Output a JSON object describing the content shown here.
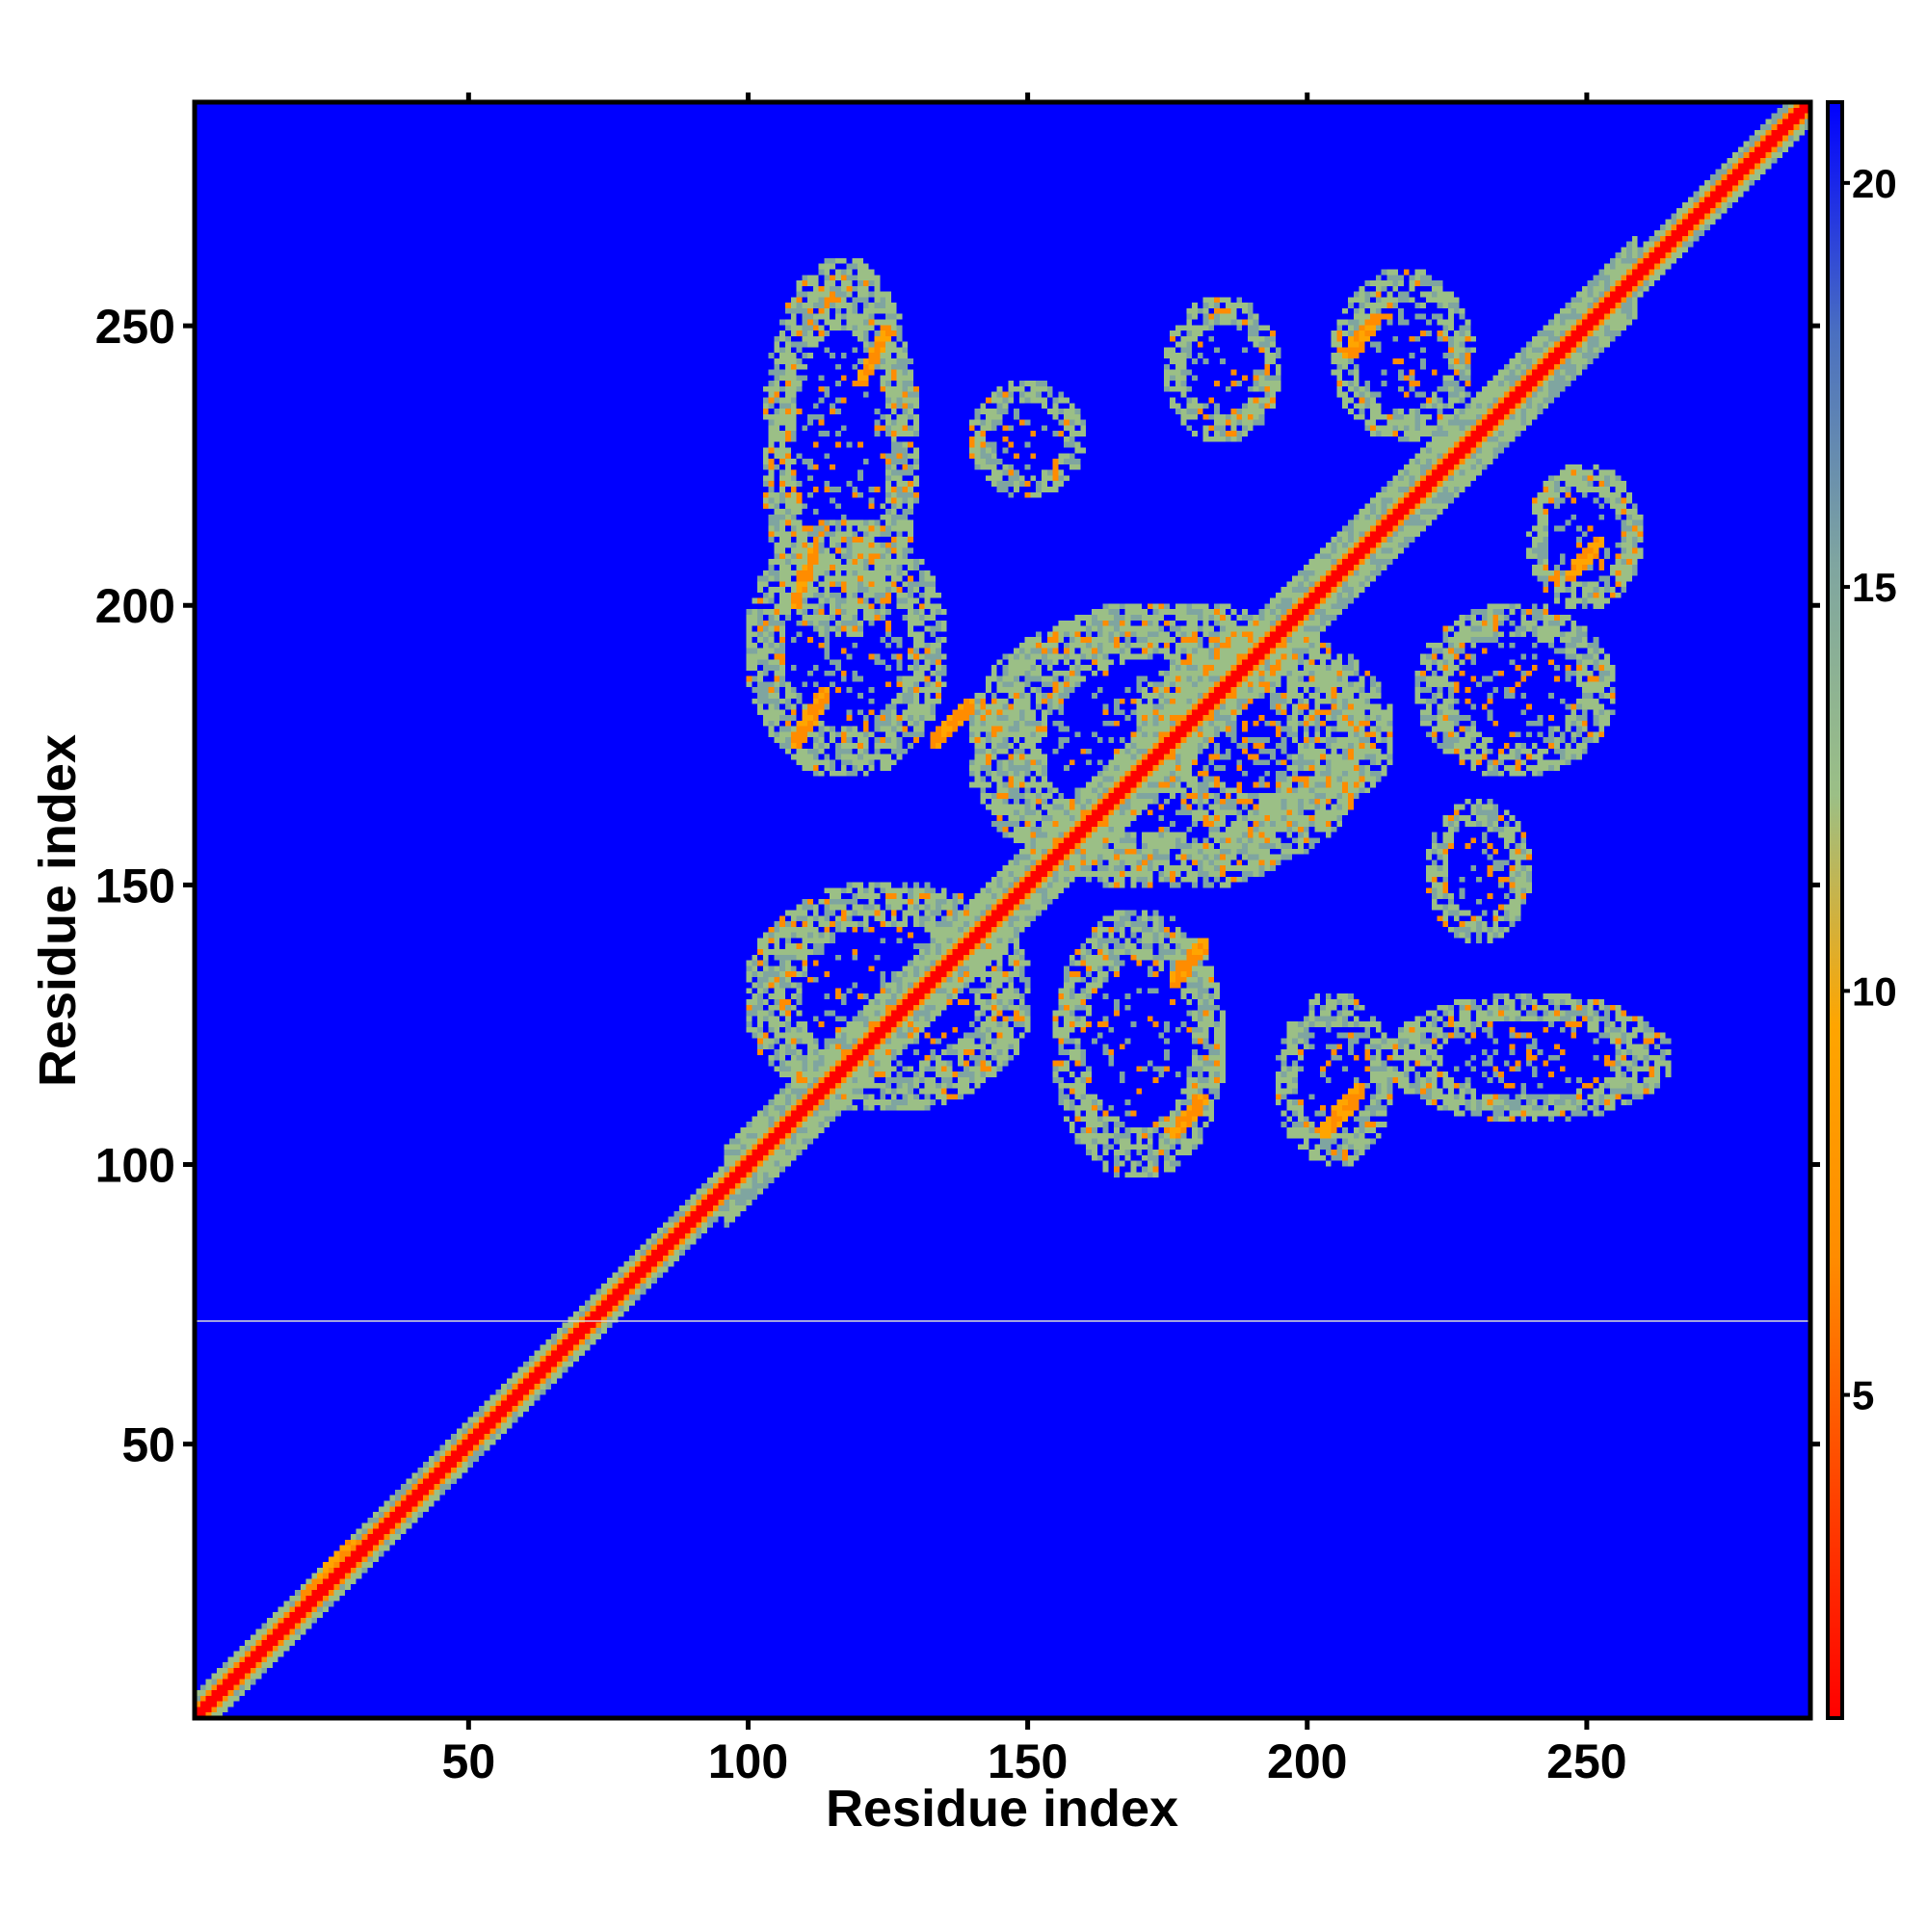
{
  "chart_data": {
    "type": "heatmap",
    "title": "",
    "xlabel": "Residue index",
    "ylabel": "Residue index",
    "xlim": [
      1,
      290
    ],
    "ylim": [
      1,
      290
    ],
    "x_ticks": [
      50,
      100,
      150,
      200,
      250
    ],
    "y_ticks": [
      50,
      100,
      150,
      200,
      250
    ],
    "x_tick_labels": [
      "50",
      "100",
      "150",
      "200",
      "250"
    ],
    "y_tick_labels": [
      "50",
      "100",
      "150",
      "200",
      "250"
    ],
    "colorbar": {
      "range": [
        1,
        21
      ],
      "ticks": [
        5,
        10,
        15,
        20
      ],
      "tick_labels": [
        "5",
        "10",
        "15",
        "20"
      ],
      "colors": [
        "#ff0000",
        "#ff4500",
        "#ff8c00",
        "#ffa500",
        "#9bbf86",
        "#7fa5a0",
        "#4a6fc0",
        "#0000ff"
      ]
    },
    "background_color": "#0000ff",
    "diagonal_color": "#ff0000",
    "reference_line_y": 72,
    "contact_bands": [
      {
        "x": [
          108,
          112
        ],
        "y": [
          200,
          210
        ]
      },
      {
        "x": [
          108,
          114
        ],
        "y": [
          175,
          185
        ]
      },
      {
        "x": [
          133,
          140
        ],
        "y": [
          175,
          183
        ]
      },
      {
        "x": [
          120,
          125
        ],
        "y": [
          240,
          250
        ]
      },
      {
        "x": [
          176,
          182
        ],
        "y": [
          105,
          112
        ]
      },
      {
        "x": [
          176,
          182
        ],
        "y": [
          132,
          140
        ]
      },
      {
        "x": [
          203,
          210
        ],
        "y": [
          105,
          114
        ]
      },
      {
        "x": [
          207,
          213
        ],
        "y": [
          245,
          252
        ]
      },
      {
        "x": [
          247,
          253
        ],
        "y": [
          205,
          212
        ]
      },
      {
        "x": [
          20,
          30
        ],
        "y": [
          20,
          32
        ]
      },
      {
        "x": [
          237,
          240
        ],
        "y": [
          185,
          188
        ]
      }
    ],
    "contact_regions": [
      {
        "x": [
          103,
          130
        ],
        "y": [
          195,
          262
        ]
      },
      {
        "x": [
          100,
          135
        ],
        "y": [
          170,
          215
        ]
      },
      {
        "x": [
          100,
          150
        ],
        "y": [
          110,
          150
        ]
      },
      {
        "x": [
          140,
          160
        ],
        "y": [
          220,
          240
        ]
      },
      {
        "x": [
          140,
          210
        ],
        "y": [
          150,
          200
        ]
      },
      {
        "x": [
          170,
          215
        ],
        "y": [
          160,
          195
        ]
      },
      {
        "x": [
          175,
          195
        ],
        "y": [
          230,
          255
        ]
      },
      {
        "x": [
          205,
          230
        ],
        "y": [
          230,
          260
        ]
      },
      {
        "x": [
          220,
          255
        ],
        "y": [
          170,
          200
        ]
      },
      {
        "x": [
          240,
          260
        ],
        "y": [
          200,
          225
        ]
      },
      {
        "x": [
          155,
          185
        ],
        "y": [
          98,
          145
        ]
      },
      {
        "x": [
          195,
          215
        ],
        "y": [
          100,
          130
        ]
      },
      {
        "x": [
          215,
          265
        ],
        "y": [
          108,
          130
        ]
      },
      {
        "x": [
          222,
          240
        ],
        "y": [
          140,
          165
        ]
      }
    ]
  }
}
